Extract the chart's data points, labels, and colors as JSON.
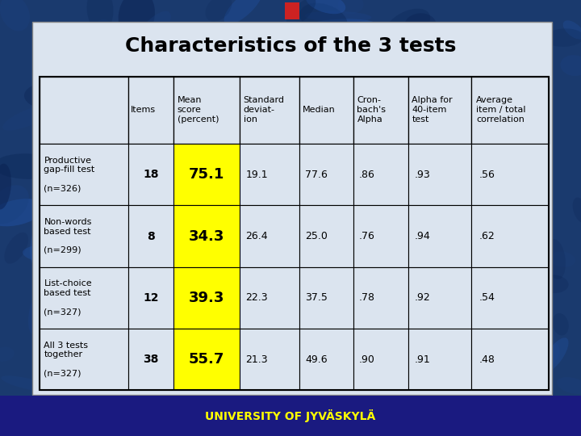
{
  "title": "Characteristics of the 3 tests",
  "col_headers": [
    "",
    "Items",
    "Mean\nscore\n(percent)",
    "Standard\ndeviat-\nion",
    "Median",
    "Cron-\nbach's\nAlpha",
    "Alpha for\n40-item\ntest",
    "Average\nitem / total\ncorrelation"
  ],
  "rows": [
    {
      "label": "Productive\ngap-fill test\n\n(n=326)",
      "items": "18",
      "mean": "75.1",
      "std": "19.1",
      "median": "77.6",
      "cronbach": ".86",
      "alpha40": ".93",
      "avg_corr": ".56"
    },
    {
      "label": "Non-words\nbased test\n\n(n=299)",
      "items": "8",
      "mean": "34.3",
      "std": "26.4",
      "median": "25.0",
      "cronbach": ".76",
      "alpha40": ".94",
      "avg_corr": ".62"
    },
    {
      "label": "List-choice\nbased test\n\n(n=327)",
      "items": "12",
      "mean": "39.3",
      "std": "22.3",
      "median": "37.5",
      "cronbach": ".78",
      "alpha40": ".92",
      "avg_corr": ".54"
    },
    {
      "label": "All 3 tests\ntogether\n\n(n=327)",
      "items": "38",
      "mean": "55.7",
      "std": "21.3",
      "median": "49.6",
      "cronbach": ".90",
      "alpha40": ".91",
      "avg_corr": ".48"
    }
  ],
  "panel_color": "#dbe4ef",
  "table_bg": "#dbe4ef",
  "mean_col_bg": "#ffff00",
  "title_color": "#000000",
  "title_fontsize": 18,
  "header_fontsize": 8,
  "cell_fontsize": 9,
  "mean_fontsize": 13,
  "label_fontsize": 8,
  "items_fontsize": 10,
  "footer_text": "UNIVERSITY OF JYVÄSKYLÄ",
  "footer_color": "#ffff00",
  "footer_bg": "#1a1a80",
  "rock_bg_top": "#2255aa",
  "rock_bg_bottom": "#1133aa"
}
